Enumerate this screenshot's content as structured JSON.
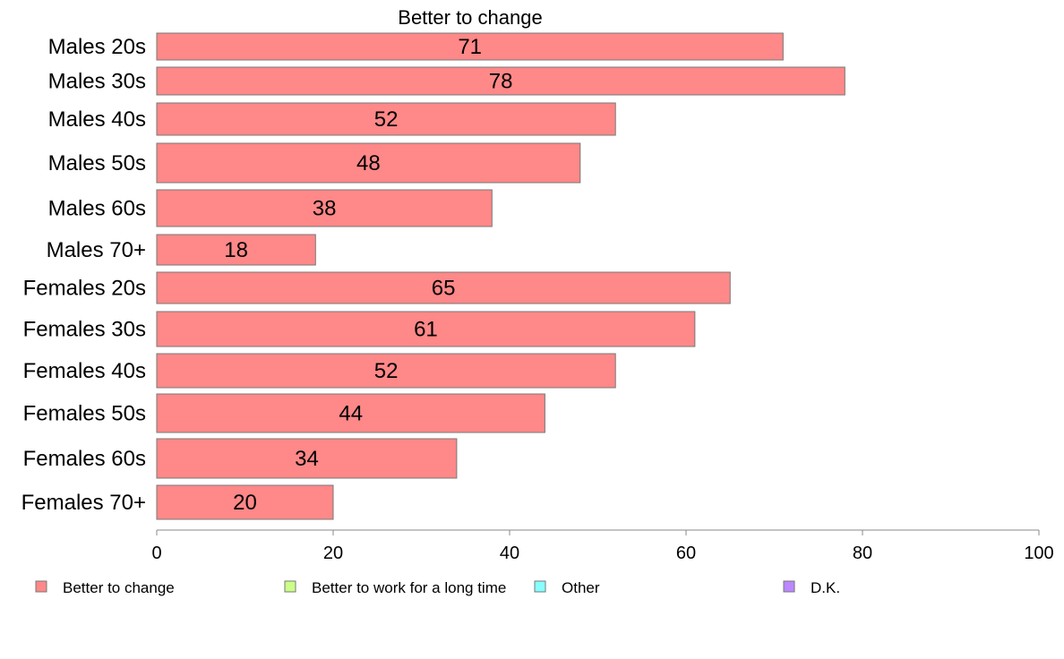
{
  "chart_data": {
    "type": "bar",
    "orientation": "horizontal",
    "title": "Better to change",
    "categories": [
      "Males 20s",
      "Males 30s",
      "Males 40s",
      "Males 50s",
      "Males 60s",
      "Males 70+",
      "Females 20s",
      "Females 30s",
      "Females 40s",
      "Females 50s",
      "Females 60s",
      "Females 70+"
    ],
    "series": [
      {
        "name": "Better to change",
        "values": [
          71,
          78,
          52,
          48,
          38,
          18,
          65,
          61,
          52,
          44,
          34,
          20
        ],
        "color": "#ff8888"
      }
    ],
    "data_labels": [
      "71",
      "78",
      "52",
      "48",
      "38",
      "18",
      "65",
      "61",
      "52",
      "44",
      "34",
      "20"
    ],
    "xlim": [
      0,
      100
    ],
    "xticks": [
      0,
      20,
      40,
      60,
      80,
      100
    ],
    "xtick_labels": [
      "0",
      "20",
      "40",
      "60",
      "80",
      "100"
    ],
    "xlabel": "",
    "ylabel": "",
    "grid": false,
    "legend": {
      "position": "bottom",
      "items": [
        {
          "label": "Better to change",
          "color": "#ff8888"
        },
        {
          "label": "Better to work for a long time",
          "color": "#ccff88"
        },
        {
          "label": "Other",
          "color": "#88ffff"
        },
        {
          "label": "D.K.",
          "color": "#bb88ff"
        }
      ]
    }
  }
}
